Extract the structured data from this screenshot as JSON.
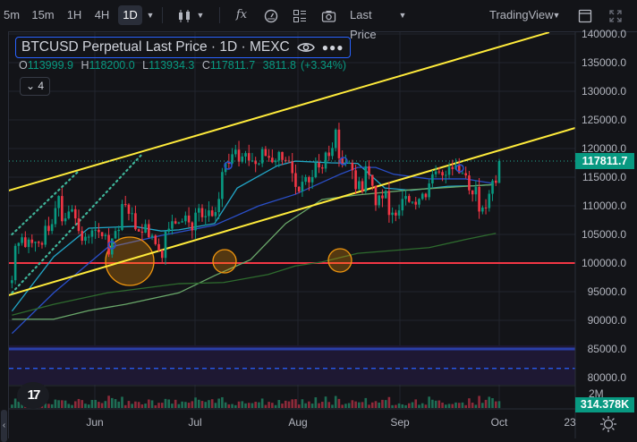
{
  "toolbar": {
    "intervals": [
      "5m",
      "15m",
      "1H",
      "4H",
      "1D"
    ],
    "selected_interval": "1D",
    "fx_label": "fx",
    "price_source": "Last Price",
    "brand": "TradingView"
  },
  "legend": {
    "title": "BTCUSD Perpetual Last Price · 1D · MEXC",
    "o_label": "O",
    "o": "113999.9",
    "h_label": "H",
    "h": "118200.0",
    "l_label": "L",
    "l": "113934.3",
    "c_label": "C",
    "c": "117811.7",
    "change": "3811.8",
    "change_pct": "(+3.34%)",
    "indicators_count": "4"
  },
  "price_axis": {
    "labels": [
      "140000.0",
      "135000.0",
      "130000.0",
      "125000.0",
      "120000.0",
      "115000.0",
      "110000.0",
      "105000.0",
      "100000.0",
      "95000.0",
      "90000.0",
      "85000.0",
      "80000.0"
    ],
    "current_price": "117811.7",
    "volume_scale": "2M",
    "volume_value": "314.378K"
  },
  "time_axis": [
    "Jun",
    "Jul",
    "Aug",
    "Sep",
    "Oct",
    "23"
  ],
  "logo_text": "TV",
  "colors": {
    "up": "#089981",
    "down": "#f23645",
    "trend": "#ffeb3b",
    "support": "#f23645",
    "band": "#2d2a8a",
    "accent": "#2962ff"
  },
  "chart_data": {
    "type": "candlestick",
    "unit": "thousand USD",
    "closes": [
      97.0,
      103.0,
      103.5,
      104.5,
      102.8,
      104.1,
      103.5,
      103.7,
      103.5,
      103.2,
      106.5,
      105.6,
      106.8,
      109.6,
      111.7,
      107.3,
      107.8,
      109.0,
      109.4,
      107.8,
      105.6,
      103.9,
      104.6,
      104.6,
      105.7,
      105.8,
      105.4,
      104.7,
      104.9,
      101.5,
      104.3,
      105.6,
      105.8,
      110.3,
      110.2,
      108.6,
      108.7,
      105.9,
      105.5,
      105.3,
      106.8,
      104.5,
      104.8,
      103.3,
      102.2,
      100.9,
      105.5,
      106.0,
      107.3,
      106.9,
      107.1,
      107.3,
      108.3,
      107.1,
      105.7,
      108.8,
      109.6,
      108.0,
      108.2,
      109.2,
      108.2,
      108.9,
      111.2,
      115.9,
      117.5,
      117.4,
      119.0,
      119.8,
      117.7,
      118.6,
      119.2,
      117.9,
      117.9,
      117.3,
      117.4,
      119.9,
      118.7,
      118.4,
      117.6,
      117.9,
      119.4,
      118.0,
      117.9,
      117.8,
      115.7,
      113.3,
      112.5,
      114.2,
      115.0,
      114.1,
      115.0,
      117.5,
      116.7,
      116.5,
      119.3,
      118.7,
      120.1,
      123.3,
      118.3,
      117.4,
      117.5,
      117.5,
      116.2,
      112.9,
      114.3,
      112.5,
      116.9,
      115.4,
      113.5,
      110.1,
      111.8,
      111.3,
      112.6,
      108.4,
      108.8,
      108.3,
      109.2,
      111.2,
      111.7,
      110.7,
      110.7,
      110.2,
      111.2,
      112.1,
      111.5,
      113.9,
      115.5,
      116.0,
      115.9,
      115.3,
      115.4,
      116.8,
      116.4,
      117.1,
      115.7,
      115.7,
      115.3,
      112.7,
      112.0,
      113.3,
      109.0,
      109.7,
      109.6,
      112.1,
      114.4,
      114.0,
      117.8117
    ],
    "last_candle": {
      "o": 113.9999,
      "h": 118.2,
      "l": 113.9343,
      "c": 117.8117
    },
    "moving_averages": [
      {
        "name": "MA20",
        "color": "#22a6c8",
        "points": [
          [
            0,
            91.6
          ],
          [
            12.5,
            101.1
          ],
          [
            23,
            106.1
          ],
          [
            36.6,
            106.4
          ],
          [
            44.7,
            105.6
          ],
          [
            50,
            105.8
          ],
          [
            60.7,
            106.9
          ],
          [
            67.5,
            113.1
          ],
          [
            79.5,
            117
          ],
          [
            84.9,
            117.8
          ],
          [
            95.6,
            117.5
          ],
          [
            103.6,
            117.4
          ],
          [
            111.7,
            113.1
          ],
          [
            119.7,
            112.7
          ],
          [
            130.5,
            113.4
          ],
          [
            138.5,
            113.5
          ],
          [
            144.3,
            113.7
          ]
        ]
      },
      {
        "name": "MA50",
        "color": "#2a4fc9",
        "points": [
          [
            0,
            87.7
          ],
          [
            12.5,
            94.8
          ],
          [
            28.6,
            102.7
          ],
          [
            44.7,
            104.8
          ],
          [
            60.7,
            106.6
          ],
          [
            74,
            110
          ],
          [
            84.9,
            112
          ],
          [
            98.3,
            115.5
          ],
          [
            103.6,
            116.7
          ],
          [
            109,
            116.7
          ],
          [
            114.4,
            115.5
          ],
          [
            125,
            114.7
          ],
          [
            135.8,
            114.7
          ],
          [
            141,
            114.2
          ],
          [
            144.3,
            113.9
          ]
        ]
      },
      {
        "name": "MA100",
        "color": "#6aa86a",
        "points": [
          [
            0,
            90.2
          ],
          [
            12.5,
            90.2
          ],
          [
            23,
            91.7
          ],
          [
            34,
            92.8
          ],
          [
            50,
            94.8
          ],
          [
            60.7,
            97.8
          ],
          [
            71.5,
            100.6
          ],
          [
            82,
            106.9
          ],
          [
            92.9,
            111.1
          ],
          [
            103.6,
            111.9
          ],
          [
            119.7,
            112.8
          ],
          [
            135.8,
            113.4
          ],
          [
            144.3,
            113.7
          ]
        ]
      },
      {
        "name": "MA200",
        "color": "#2e6b2e",
        "points": [
          [
            0,
            90.9
          ],
          [
            12.5,
            92.8
          ],
          [
            28.6,
            94.8
          ],
          [
            50,
            96.4
          ],
          [
            63.4,
            96.6
          ],
          [
            76.8,
            98
          ],
          [
            84.9,
            99.5
          ],
          [
            92.9,
            100.2
          ],
          [
            103.6,
            101.7
          ],
          [
            125,
            102.7
          ],
          [
            135.8,
            104.1
          ],
          [
            145,
            105.2
          ]
        ]
      }
    ],
    "trend_lines": [
      {
        "name": "channel-upper",
        "from": [
          -1,
          112.66
        ],
        "to": [
          161,
          140.3
        ]
      },
      {
        "name": "channel-lower",
        "from": [
          -1,
          94.38
        ],
        "to": [
          168.8,
          123.6
        ]
      },
      {
        "name": "dotted-upper",
        "from": [
          0,
          105
        ],
        "to": [
          19.7,
          115.9
        ]
      },
      {
        "name": "dotted-lower",
        "from": [
          0,
          94.8
        ],
        "to": [
          38.8,
          118.9
        ]
      }
    ],
    "horizontal_lines": [
      {
        "name": "support-100k",
        "price": 100.0
      },
      {
        "name": "range-top-85k",
        "price": 85.0
      },
      {
        "name": "range-mid-dashed",
        "price": 81.6
      }
    ],
    "ylim": [
      80,
      140
    ]
  }
}
